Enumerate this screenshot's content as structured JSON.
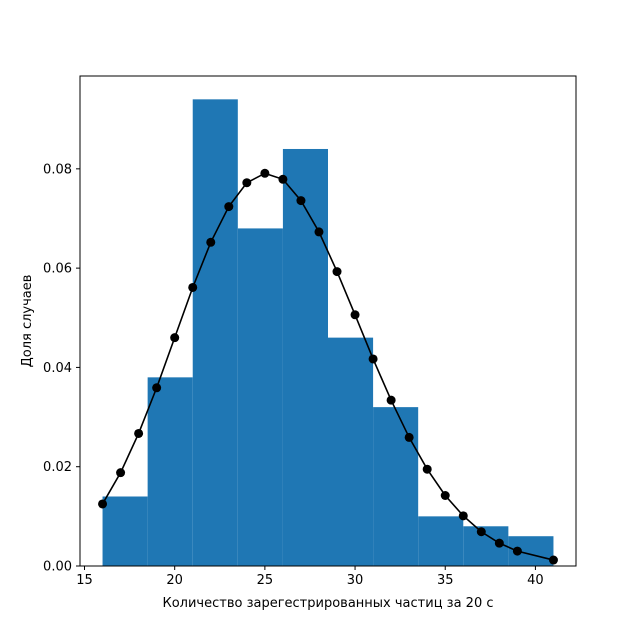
{
  "chart_data": {
    "type": "bar",
    "title": "",
    "xlabel": "Количество зарегестрированных частиц за 20 с",
    "ylabel": "Доля случаев",
    "xlim": [
      14.75,
      42.25
    ],
    "ylim": [
      0.0,
      0.0987
    ],
    "xticks": [
      15,
      20,
      25,
      30,
      35,
      40
    ],
    "xtick_labels": [
      "15",
      "20",
      "25",
      "30",
      "35",
      "40"
    ],
    "yticks": [
      0.0,
      0.02,
      0.04,
      0.06,
      0.08
    ],
    "ytick_labels": [
      "0.00",
      "0.02",
      "0.04",
      "0.06",
      "0.08"
    ],
    "grid": false,
    "bar_color": "#1f77b4",
    "line_color": "#000000",
    "histogram": {
      "bin_edges": [
        16,
        18.5,
        21,
        23.5,
        26,
        28.5,
        31,
        33.5,
        36,
        38.5,
        41
      ],
      "values": [
        0.014,
        0.038,
        0.094,
        0.068,
        0.084,
        0.046,
        0.032,
        0.01,
        0.008,
        0.006
      ]
    },
    "series": [
      {
        "type": "line",
        "x": [
          16,
          17,
          18,
          19,
          20,
          21,
          22,
          23,
          24,
          25,
          26,
          27,
          28,
          29,
          30,
          31,
          32,
          33,
          34,
          35,
          36,
          37,
          38,
          39,
          41
        ],
        "values": [
          0.0125,
          0.0188,
          0.0267,
          0.0359,
          0.046,
          0.0561,
          0.0652,
          0.0724,
          0.0772,
          0.0791,
          0.0779,
          0.0736,
          0.0673,
          0.0593,
          0.0506,
          0.0417,
          0.0334,
          0.0259,
          0.0195,
          0.0142,
          0.0101,
          0.0069,
          0.0046,
          0.003,
          0.0012
        ]
      }
    ]
  }
}
